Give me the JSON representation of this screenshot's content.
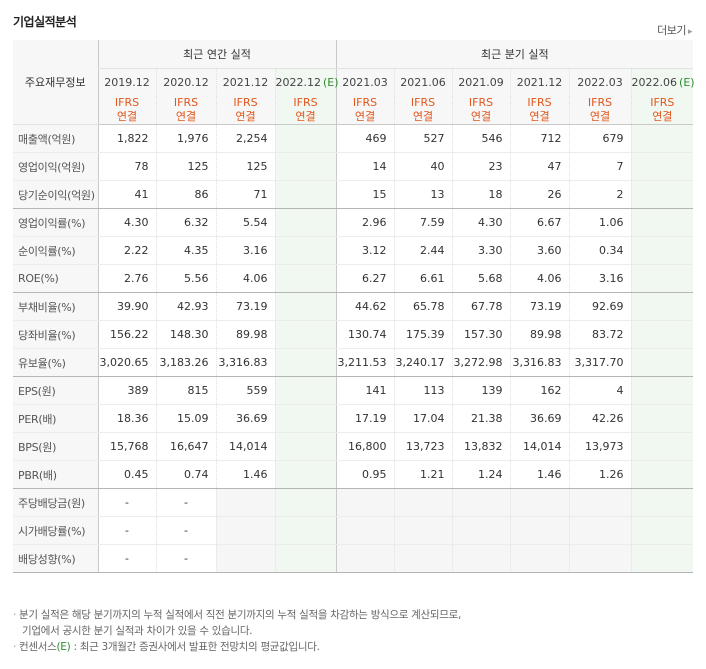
{
  "header": {
    "title": "기업실적분석",
    "more_label": "더보기",
    "more_icon": "chevron-right-icon"
  },
  "table": {
    "row_head_label": "주요재무정보",
    "annual_group": "최근 연간 실적",
    "quarter_group": "최근 분기 실적",
    "annual_cols": [
      "2019.12",
      "2020.12",
      "2021.12",
      "2022.12"
    ],
    "annual_est_suffix": "(E)",
    "quarter_cols": [
      "2021.03",
      "2021.06",
      "2021.09",
      "2021.12",
      "2022.03",
      "2022.06"
    ],
    "quarter_est_suffix": "(E)",
    "ifrs_label": "IFRS",
    "basis_label": "연결",
    "rows": [
      {
        "label": "매출액(억원)",
        "annual": [
          "1,822",
          "1,976",
          "2,254",
          ""
        ],
        "quarter": [
          "469",
          "527",
          "546",
          "712",
          "679",
          ""
        ]
      },
      {
        "label": "영업이익(억원)",
        "annual": [
          "78",
          "125",
          "125",
          ""
        ],
        "quarter": [
          "14",
          "40",
          "23",
          "47",
          "7",
          ""
        ]
      },
      {
        "label": "당기순이익(억원)",
        "annual": [
          "41",
          "86",
          "71",
          ""
        ],
        "quarter": [
          "15",
          "13",
          "18",
          "26",
          "2",
          ""
        ]
      },
      {
        "label": "영업이익률(%)",
        "annual": [
          "4.30",
          "6.32",
          "5.54",
          ""
        ],
        "quarter": [
          "2.96",
          "7.59",
          "4.30",
          "6.67",
          "1.06",
          ""
        ]
      },
      {
        "label": "순이익률(%)",
        "annual": [
          "2.22",
          "4.35",
          "3.16",
          ""
        ],
        "quarter": [
          "3.12",
          "2.44",
          "3.30",
          "3.60",
          "0.34",
          ""
        ]
      },
      {
        "label": "ROE(%)",
        "annual": [
          "2.76",
          "5.56",
          "4.06",
          ""
        ],
        "quarter": [
          "6.27",
          "6.61",
          "5.68",
          "4.06",
          "3.16",
          ""
        ]
      },
      {
        "label": "부채비율(%)",
        "annual": [
          "39.90",
          "42.93",
          "73.19",
          ""
        ],
        "quarter": [
          "44.62",
          "65.78",
          "67.78",
          "73.19",
          "92.69",
          ""
        ]
      },
      {
        "label": "당좌비율(%)",
        "annual": [
          "156.22",
          "148.30",
          "89.98",
          ""
        ],
        "quarter": [
          "130.74",
          "175.39",
          "157.30",
          "89.98",
          "83.72",
          ""
        ]
      },
      {
        "label": "유보율(%)",
        "annual": [
          "3,020.65",
          "3,183.26",
          "3,316.83",
          ""
        ],
        "quarter": [
          "3,211.53",
          "3,240.17",
          "3,272.98",
          "3,316.83",
          "3,317.70",
          ""
        ]
      },
      {
        "label": "EPS(원)",
        "annual": [
          "389",
          "815",
          "559",
          ""
        ],
        "quarter": [
          "141",
          "113",
          "139",
          "162",
          "4",
          ""
        ]
      },
      {
        "label": "PER(배)",
        "annual": [
          "18.36",
          "15.09",
          "36.69",
          ""
        ],
        "quarter": [
          "17.19",
          "17.04",
          "21.38",
          "36.69",
          "42.26",
          ""
        ]
      },
      {
        "label": "BPS(원)",
        "annual": [
          "15,768",
          "16,647",
          "14,014",
          ""
        ],
        "quarter": [
          "16,800",
          "13,723",
          "13,832",
          "14,014",
          "13,973",
          ""
        ]
      },
      {
        "label": "PBR(배)",
        "annual": [
          "0.45",
          "0.74",
          "1.46",
          ""
        ],
        "quarter": [
          "0.95",
          "1.21",
          "1.24",
          "1.46",
          "1.26",
          ""
        ]
      },
      {
        "label": "주당배당금(원)",
        "annual": [
          "-",
          "-",
          "",
          ""
        ],
        "quarter": [
          "",
          "",
          "",
          "",
          "",
          ""
        ]
      },
      {
        "label": "시가배당률(%)",
        "annual": [
          "-",
          "-",
          "",
          ""
        ],
        "quarter": [
          "",
          "",
          "",
          "",
          "",
          ""
        ]
      },
      {
        "label": "배당성향(%)",
        "annual": [
          "-",
          "-",
          "",
          ""
        ],
        "quarter": [
          "",
          "",
          "",
          "",
          "",
          ""
        ]
      }
    ],
    "section_breaks_after": [
      2,
      5,
      8,
      12
    ]
  },
  "notes": {
    "line1": "분기 실적은 해당 분기까지의 누적 실적에서 직전 분기까지의 누적 실적을 차감하는 방식으로 계산되므로,",
    "line2": "기업에서 공시한 분기 실적과 차이가 있을 수 있습니다.",
    "line3_prefix": "컨센서스",
    "line3_e": "(E)",
    "line3_suffix": " : 최근 3개월간 증권사에서 발표한 전망치의 평균값입니다."
  },
  "colors": {
    "ifrs_orange": "#e2561a",
    "estimate_bg": "#f1f7f1",
    "estimate_green": "#2f8d2f"
  }
}
